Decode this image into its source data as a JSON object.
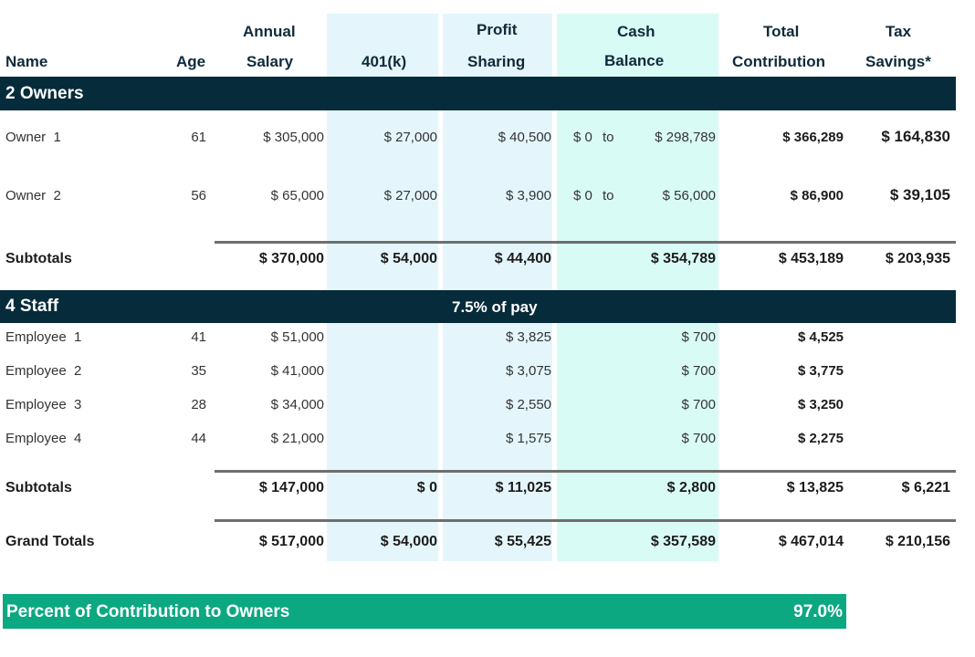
{
  "headers": {
    "name": "Name",
    "age": "Age",
    "salary_top": "Annual",
    "salary_bottom": "Salary",
    "k401": "401(k)",
    "profit_top": "Profit",
    "profit_bottom": "Sharing",
    "cash_top": "Cash",
    "cash_bottom": "Balance",
    "total_top": "Total",
    "total_bottom": "Contribution",
    "tax_top": "Tax",
    "tax_bottom": "Savings*"
  },
  "owners_band": {
    "label": "2 Owners"
  },
  "owners": [
    {
      "name": "Owner  1",
      "age": "61",
      "salary": "$ 305,000",
      "k401": "$ 27,000",
      "profit": "$ 40,500",
      "cash_from": "$ 0",
      "to": "to",
      "cash_to": "$ 298,789",
      "total": "$ 366,289",
      "tax": "$ 164,830"
    },
    {
      "name": "Owner  2",
      "age": "56",
      "salary": "$ 65,000",
      "k401": "$ 27,000",
      "profit": "$ 3,900",
      "cash_from": "$ 0",
      "to": "to",
      "cash_to": "$ 56,000",
      "total": "$ 86,900",
      "tax": "$ 39,105"
    }
  ],
  "owners_subtotal": {
    "label": "Subtotals",
    "salary": "$ 370,000",
    "k401": "$ 54,000",
    "profit": "$ 44,400",
    "cash": "$ 354,789",
    "total": "$ 453,189",
    "tax": "$ 203,935"
  },
  "staff_band": {
    "label": "4 Staff",
    "note": "7.5% of pay"
  },
  "staff": [
    {
      "name": "Employee  1",
      "age": "41",
      "salary": "$ 51,000",
      "profit": "$ 3,825",
      "cash": "$ 700",
      "total": "$ 4,525"
    },
    {
      "name": "Employee  2",
      "age": "35",
      "salary": "$ 41,000",
      "profit": "$ 3,075",
      "cash": "$ 700",
      "total": "$ 3,775"
    },
    {
      "name": "Employee  3",
      "age": "28",
      "salary": "$ 34,000",
      "profit": "$ 2,550",
      "cash": "$ 700",
      "total": "$ 3,250"
    },
    {
      "name": "Employee  4",
      "age": "44",
      "salary": "$ 21,000",
      "profit": "$ 1,575",
      "cash": "$ 700",
      "total": "$ 2,275"
    }
  ],
  "staff_subtotal": {
    "label": "Subtotals",
    "salary": "$ 147,000",
    "k401": "$ 0",
    "profit": "$ 11,025",
    "cash": "$ 2,800",
    "total": "$ 13,825",
    "tax": "$ 6,221"
  },
  "grand_total": {
    "label": "Grand Totals",
    "salary": "$ 517,000",
    "k401": "$ 54,000",
    "profit": "$ 55,425",
    "cash": "$ 357,589",
    "total": "$ 467,014",
    "tax": "$ 210,156"
  },
  "percent_bar": {
    "label": "Percent of Contribution to Owners",
    "value": "97.0%"
  },
  "colors": {
    "band": "#062b3a",
    "shade_401k_profit": "#e4f6fc",
    "shade_cash": "#d9fbf5",
    "percent_bar": "#0ba882"
  }
}
